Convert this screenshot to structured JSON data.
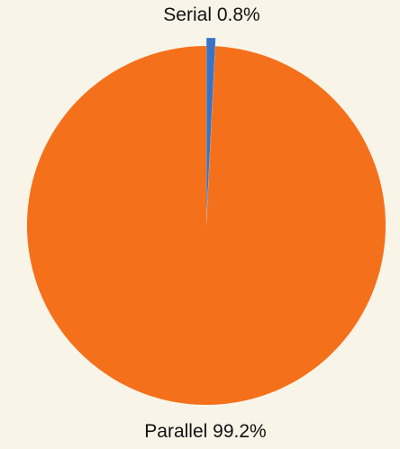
{
  "chart_data": {
    "type": "pie",
    "slices": [
      {
        "label": "Serial 0.8%",
        "value": 0.8,
        "color": "#3a73c4",
        "exploded": true
      },
      {
        "label": "Parallel 99.2%",
        "value": 99.2,
        "color": "#f5701a",
        "exploded": false
      }
    ]
  }
}
